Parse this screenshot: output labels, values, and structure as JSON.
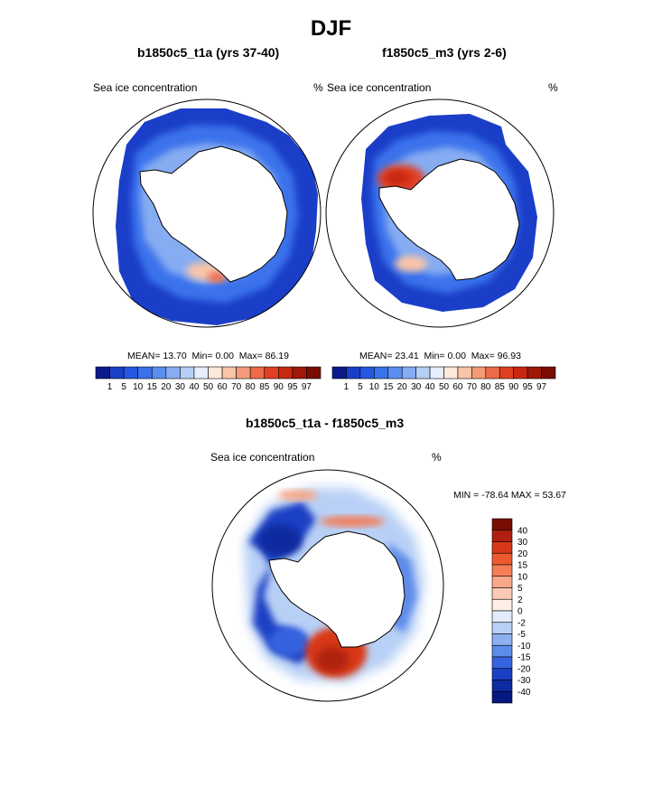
{
  "title": "DJF",
  "chart_data": [
    {
      "type": "polar-map",
      "title": "b1850c5_t1a (yrs 37-40)",
      "variable": "Sea ice concentration",
      "units": "%",
      "stats": {
        "mean_label": "MEAN=",
        "mean": "13.70",
        "min_label": "Min=",
        "min": "0.00",
        "max_label": "Max=",
        "max": "86.19"
      },
      "colorbar": {
        "levels": [
          "1",
          "5",
          "10",
          "15",
          "20",
          "30",
          "40",
          "50",
          "60",
          "70",
          "80",
          "85",
          "90",
          "95",
          "97"
        ],
        "colors": [
          "#0a1a8c",
          "#1a3ec8",
          "#2458e0",
          "#3a72ec",
          "#5a8ef0",
          "#86acf2",
          "#b4cef6",
          "#e4eefc",
          "#fde9dc",
          "#f9c4a8",
          "#f49a78",
          "#ee6a48",
          "#e04020",
          "#c82810",
          "#a01808",
          "#7a0c04"
        ]
      }
    },
    {
      "type": "polar-map",
      "title": "f1850c5_m3 (yrs 2-6)",
      "variable": "Sea ice concentration",
      "units": "%",
      "stats": {
        "mean_label": "MEAN=",
        "mean": "23.41",
        "min_label": "Min=",
        "min": "0.00",
        "max_label": "Max=",
        "max": "96.93"
      },
      "colorbar": {
        "levels": [
          "1",
          "5",
          "10",
          "15",
          "20",
          "30",
          "40",
          "50",
          "60",
          "70",
          "80",
          "85",
          "90",
          "95",
          "97"
        ],
        "colors": [
          "#0a1a8c",
          "#1a3ec8",
          "#2458e0",
          "#3a72ec",
          "#5a8ef0",
          "#86acf2",
          "#b4cef6",
          "#e4eefc",
          "#fde9dc",
          "#f9c4a8",
          "#f49a78",
          "#ee6a48",
          "#e04020",
          "#c82810",
          "#a01808",
          "#7a0c04"
        ]
      }
    },
    {
      "type": "polar-map-difference",
      "title": "b1850c5_t1a - f1850c5_m3",
      "variable": "Sea ice concentration",
      "units": "%",
      "stats": {
        "text": "MIN = -78.64 MAX =  53.67"
      },
      "colorbar": {
        "levels": [
          "40",
          "30",
          "20",
          "15",
          "10",
          "5",
          "2",
          "0",
          "-2",
          "-5",
          "-10",
          "-15",
          "-20",
          "-30",
          "-40"
        ],
        "colors": [
          "#7a0c04",
          "#b02010",
          "#d83818",
          "#ee5a30",
          "#f47e58",
          "#f8a888",
          "#fccab4",
          "#fdeee6",
          "#e2ecfc",
          "#b8d0f6",
          "#8cb0f0",
          "#5e8cea",
          "#3664e0",
          "#1c40c4",
          "#0e2aa0",
          "#061880"
        ]
      }
    }
  ]
}
